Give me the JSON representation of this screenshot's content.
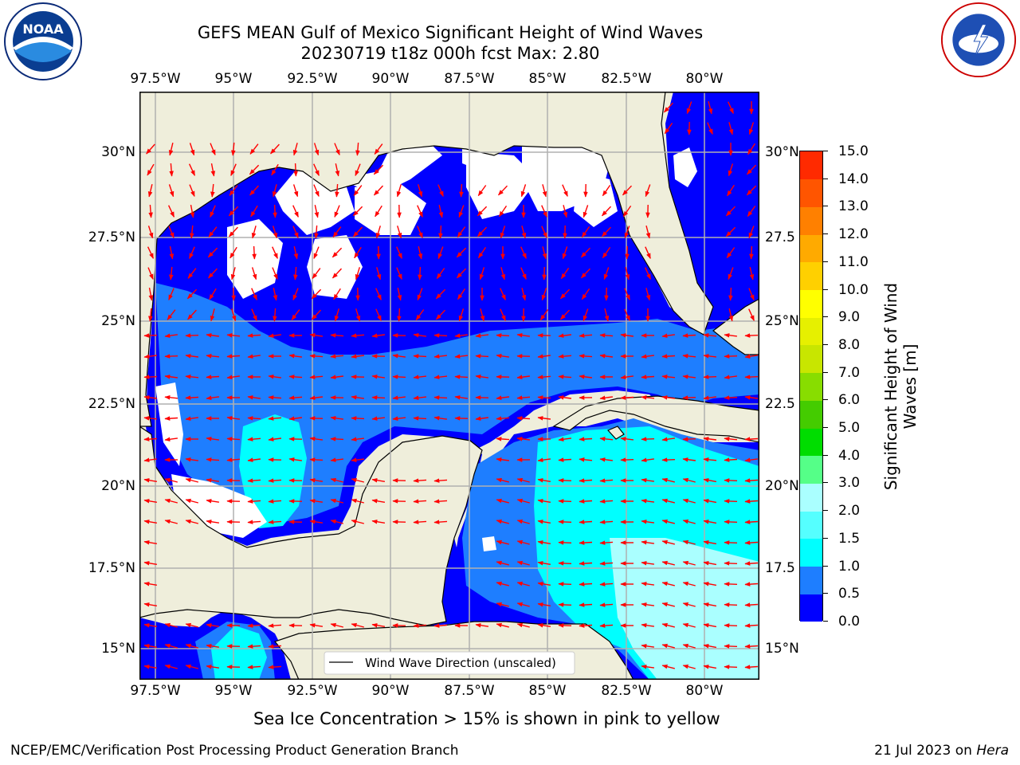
{
  "title_line1": "GEFS MEAN Gulf of Mexico Significant Height of Wind Waves",
  "title_line2": "20230719 t18z 000h fcst   Max: 2.80",
  "lon_labels": [
    "97.5°W",
    "95°W",
    "92.5°W",
    "90°W",
    "87.5°W",
    "85°W",
    "82.5°W",
    "80°W"
  ],
  "lat_labels_left": [
    "30°N",
    "27.5°N",
    "25°N",
    "22.5°N",
    "20°N",
    "17.5°N",
    "15°N"
  ],
  "lat_labels_right": [
    "30°N",
    "27.5",
    "25°N",
    "22.5",
    "20°N",
    "17.5",
    "15°N"
  ],
  "legend": {
    "label": "Wind Wave Direction (unscaled)"
  },
  "colorbar": {
    "ticks": [
      "15.0",
      "14.0",
      "13.0",
      "12.0",
      "11.0",
      "10.0",
      "9.0",
      "8.0",
      "7.0",
      "6.0",
      "5.0",
      "4.0",
      "3.0",
      "2.0",
      "1.5",
      "1.0",
      "0.5",
      "0.0"
    ],
    "label_line1": "Significant Height of Wind",
    "label_line2": "Waves [m]",
    "colors_bottom_to_top": [
      "#0000ff",
      "#1e7eff",
      "#00ffff",
      "#55ffff",
      "#aaffff",
      "#55ff88",
      "#00dd00",
      "#44cc00",
      "#88dd00",
      "#c8e600",
      "#e6f000",
      "#ffff00",
      "#ffd000",
      "#ffaa00",
      "#ff8000",
      "#ff5500",
      "#ff2a00",
      "#ff0000"
    ]
  },
  "note": "Sea Ice Concentration > 15% is shown in pink to yellow",
  "footer_left": "NCEP/EMC/Verification Post Processing Product Generation Branch",
  "footer_right_date": "21 Jul 2023 on ",
  "footer_right_host": "Hera",
  "colors": {
    "land": "#efeedb",
    "arrow": "#ff0000",
    "deep": "#0000ff",
    "mid": "#1e7eff",
    "light": "#00ffff",
    "pale": "#aaffff",
    "nodata": "#ffffff",
    "grid": "#b0b0b0"
  },
  "logos": {
    "left": "noaa-logo",
    "right": "nws-logo"
  }
}
